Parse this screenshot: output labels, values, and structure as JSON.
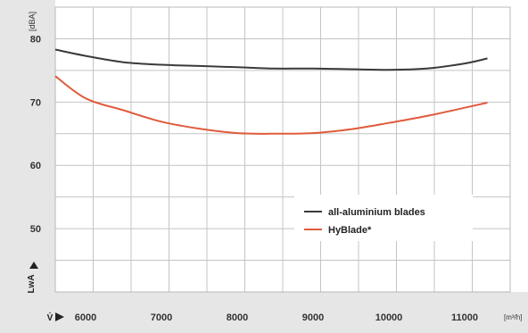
{
  "chart_data": {
    "type": "line",
    "ylabel_unit": "[dBA]",
    "ylabel": "LwA",
    "xlabel": "V̇",
    "xlabel_unit": "[m³/h]",
    "xlim": [
      5600,
      11600
    ],
    "ylim": [
      40,
      85
    ],
    "grid": true,
    "x_ticks": [
      6000,
      7000,
      8000,
      9000,
      10000,
      11000
    ],
    "y_ticks": [
      50,
      60,
      70,
      80
    ],
    "legend_position": "center-right",
    "series": [
      {
        "name": "all-aluminium blades",
        "color": "#3a3a3a",
        "x": [
          5600,
          6000,
          6500,
          7000,
          7500,
          8000,
          8500,
          9000,
          9500,
          10000,
          10500,
          11000,
          11300
        ],
        "y": [
          78.3,
          77.3,
          76.3,
          75.9,
          75.7,
          75.5,
          75.3,
          75.3,
          75.2,
          75.1,
          75.3,
          76.1,
          76.9
        ]
      },
      {
        "name": "HyBlade*",
        "color": "#e05a3c",
        "x": [
          5600,
          6000,
          6500,
          7000,
          7500,
          8000,
          8500,
          9000,
          9500,
          10000,
          10500,
          11000,
          11300
        ],
        "y": [
          74.1,
          70.6,
          68.7,
          66.9,
          65.8,
          65.1,
          65.0,
          65.1,
          65.7,
          66.7,
          67.8,
          69.1,
          69.9
        ]
      }
    ]
  }
}
